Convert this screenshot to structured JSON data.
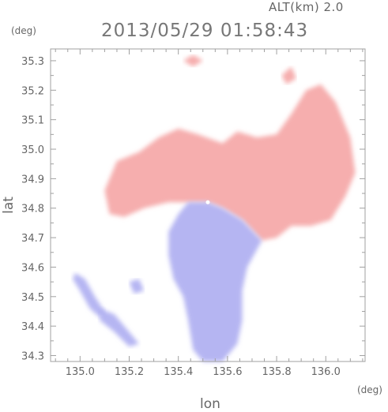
{
  "header": {
    "altitude_label": "ALT(km) 2.0",
    "timestamp": "2013/05/29 01:58:43"
  },
  "axes": {
    "y_unit": "(deg)",
    "x_unit": "(deg)",
    "xlabel": "lon",
    "ylabel": "lat"
  },
  "colors": {
    "frame": "#a0a0a0",
    "positive": "#f5a0a0",
    "negative": "#a8a8f0",
    "background": "#ffffff"
  },
  "chart_data": {
    "type": "heatmap",
    "xlabel": "lon",
    "ylabel": "lat",
    "xlim": [
      134.88,
      136.16
    ],
    "ylim": [
      34.28,
      35.34
    ],
    "x_ticks": [
      {
        "value": 135.0,
        "label": "135.0"
      },
      {
        "value": 135.2,
        "label": "135.2"
      },
      {
        "value": 135.4,
        "label": "135.4"
      },
      {
        "value": 135.6,
        "label": "135.6"
      },
      {
        "value": 135.8,
        "label": "135.8"
      },
      {
        "value": 136.0,
        "label": "136.0"
      }
    ],
    "y_ticks": [
      {
        "value": 34.3,
        "label": "34.3"
      },
      {
        "value": 34.4,
        "label": "34.4"
      },
      {
        "value": 34.5,
        "label": "34.5"
      },
      {
        "value": 34.6,
        "label": "34.6"
      },
      {
        "value": 34.7,
        "label": "34.7"
      },
      {
        "value": 34.8,
        "label": "34.8"
      },
      {
        "value": 34.9,
        "label": "34.9"
      },
      {
        "value": 35.0,
        "label": "35.0"
      },
      {
        "value": 35.1,
        "label": "35.1"
      },
      {
        "value": 35.2,
        "label": "35.2"
      },
      {
        "value": 35.3,
        "label": "35.3"
      }
    ],
    "radar_center": {
      "lon": 135.52,
      "lat": 34.82
    },
    "grid": false,
    "legend": "none",
    "regions": [
      {
        "kind": "positive",
        "polygon": [
          [
            135.12,
            34.78
          ],
          [
            135.1,
            34.86
          ],
          [
            135.15,
            34.96
          ],
          [
            135.24,
            34.99
          ],
          [
            135.32,
            35.04
          ],
          [
            135.4,
            35.07
          ],
          [
            135.48,
            35.05
          ],
          [
            135.58,
            35.02
          ],
          [
            135.64,
            35.06
          ],
          [
            135.72,
            35.04
          ],
          [
            135.8,
            35.05
          ],
          [
            135.86,
            35.12
          ],
          [
            135.92,
            35.2
          ],
          [
            135.98,
            35.22
          ],
          [
            136.04,
            35.16
          ],
          [
            136.1,
            35.04
          ],
          [
            136.12,
            34.92
          ],
          [
            136.08,
            34.84
          ],
          [
            136.02,
            34.76
          ],
          [
            135.94,
            34.74
          ],
          [
            135.86,
            34.74
          ],
          [
            135.8,
            34.7
          ],
          [
            135.74,
            34.69
          ],
          [
            135.66,
            34.76
          ],
          [
            135.58,
            34.8
          ],
          [
            135.52,
            34.82
          ],
          [
            135.44,
            34.82
          ],
          [
            135.36,
            34.82
          ],
          [
            135.26,
            34.8
          ],
          [
            135.18,
            34.77
          ]
        ]
      },
      {
        "kind": "positive",
        "polygon": [
          [
            135.42,
            35.3
          ],
          [
            135.46,
            35.32
          ],
          [
            135.5,
            35.3
          ],
          [
            135.46,
            35.28
          ]
        ]
      },
      {
        "kind": "positive",
        "polygon": [
          [
            135.82,
            35.25
          ],
          [
            135.86,
            35.28
          ],
          [
            135.88,
            35.24
          ],
          [
            135.84,
            35.22
          ]
        ]
      },
      {
        "kind": "negative",
        "polygon": [
          [
            135.52,
            34.82
          ],
          [
            135.44,
            34.82
          ],
          [
            135.4,
            34.78
          ],
          [
            135.36,
            34.72
          ],
          [
            135.36,
            34.64
          ],
          [
            135.38,
            34.56
          ],
          [
            135.42,
            34.5
          ],
          [
            135.44,
            34.42
          ],
          [
            135.46,
            34.32
          ],
          [
            135.5,
            34.28
          ],
          [
            135.58,
            34.28
          ],
          [
            135.64,
            34.34
          ],
          [
            135.66,
            34.42
          ],
          [
            135.66,
            34.52
          ],
          [
            135.68,
            34.6
          ],
          [
            135.72,
            34.66
          ],
          [
            135.74,
            34.69
          ],
          [
            135.66,
            34.76
          ],
          [
            135.58,
            34.8
          ]
        ]
      },
      {
        "kind": "negative",
        "polygon": [
          [
            134.98,
            34.58
          ],
          [
            135.02,
            34.56
          ],
          [
            135.06,
            34.5
          ],
          [
            135.1,
            34.45
          ],
          [
            135.08,
            34.43
          ],
          [
            135.04,
            34.46
          ],
          [
            135.0,
            34.52
          ],
          [
            134.97,
            34.56
          ]
        ]
      },
      {
        "kind": "negative",
        "polygon": [
          [
            135.08,
            34.46
          ],
          [
            135.14,
            34.44
          ],
          [
            135.2,
            34.38
          ],
          [
            135.24,
            34.34
          ],
          [
            135.2,
            34.33
          ],
          [
            135.14,
            34.38
          ],
          [
            135.08,
            34.42
          ]
        ]
      },
      {
        "kind": "negative",
        "polygon": [
          [
            135.2,
            34.55
          ],
          [
            135.24,
            34.56
          ],
          [
            135.26,
            34.52
          ],
          [
            135.22,
            34.51
          ]
        ]
      }
    ]
  }
}
